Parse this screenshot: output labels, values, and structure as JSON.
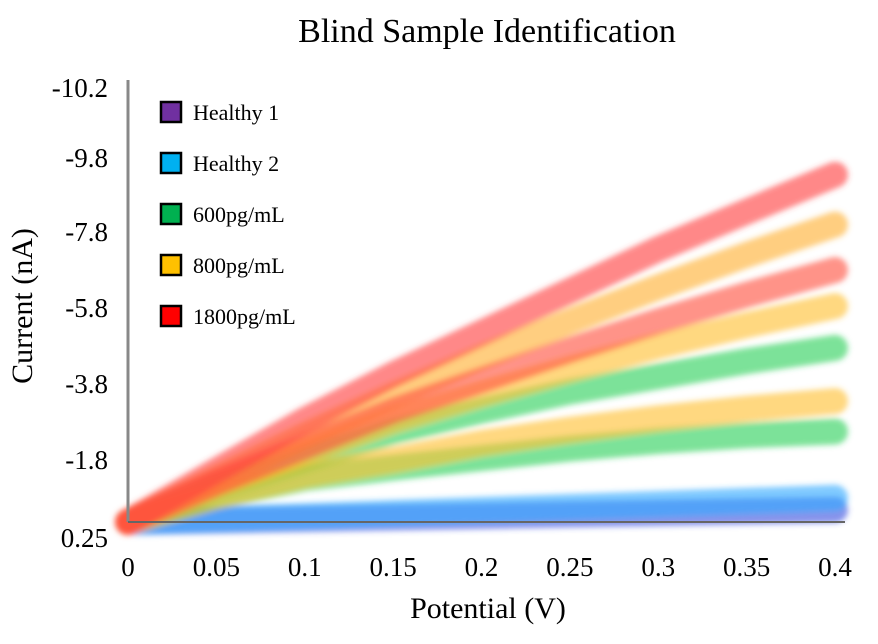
{
  "chart_data": {
    "type": "line",
    "title": "Blind Sample Identification",
    "xlabel": "Potential (V)",
    "ylabel": "Current (nA)",
    "x_ticks": [
      "0",
      "0.05",
      "0.1",
      "0.15",
      "0.2",
      "0.25",
      "0.3",
      "0.35",
      "0.4"
    ],
    "y_ticks": [
      "-10.2",
      "-9.8",
      "-7.8",
      "-5.8",
      "-3.8",
      "-1.8",
      "0.25"
    ],
    "xlim": [
      0,
      0.4
    ],
    "y_axis_inverted": true,
    "grid": false,
    "legend_position": "top-left",
    "legend": [
      {
        "label": "Healthy 1",
        "color": "#7030A0"
      },
      {
        "label": "Healthy 2",
        "color": "#00B0F0"
      },
      {
        "label": "600pg/mL",
        "color": "#00B050"
      },
      {
        "label": "800pg/mL",
        "color": "#FFC000"
      },
      {
        "label": "1800pg/mL",
        "color": "#FF0000"
      }
    ],
    "x": [
      0,
      0.05,
      0.1,
      0.15,
      0.2,
      0.25,
      0.3,
      0.35,
      0.4
    ],
    "series": [
      {
        "group": "Healthy 1",
        "color": "#3b50e0",
        "y": [
          0.25,
          0.2,
          0.15,
          0.1,
          0.05,
          0.0,
          -0.05,
          -0.1,
          -0.15
        ]
      },
      {
        "group": "Healthy 2",
        "color": "#33aaff",
        "y": [
          0.25,
          0.15,
          0.05,
          -0.05,
          -0.15,
          -0.25,
          -0.35,
          -0.45,
          -0.55
        ]
      },
      {
        "group": "600pg/mL",
        "color": "#2fd05a",
        "y": [
          0.25,
          -0.6,
          -1.2,
          -1.55,
          -1.85,
          -2.1,
          -2.3,
          -2.45,
          -2.55
        ]
      },
      {
        "group": "600pg/mL",
        "color": "#2fd05a",
        "y": [
          0.25,
          -0.9,
          -1.8,
          -2.55,
          -3.1,
          -3.6,
          -4.0,
          -4.4,
          -4.75
        ]
      },
      {
        "group": "800pg/mL",
        "color": "#ffc030",
        "y": [
          0.25,
          -0.6,
          -1.3,
          -1.8,
          -2.25,
          -2.6,
          -2.9,
          -3.15,
          -3.35
        ]
      },
      {
        "group": "800pg/mL",
        "color": "#ffc030",
        "y": [
          0.25,
          -1.0,
          -2.0,
          -2.85,
          -3.55,
          -4.2,
          -4.8,
          -5.35,
          -5.85
        ]
      },
      {
        "group": "800pg/mL",
        "color": "#ffb030",
        "y": [
          0.25,
          -1.2,
          -2.45,
          -3.5,
          -4.5,
          -5.45,
          -6.35,
          -7.2,
          -8.0
        ]
      },
      {
        "group": "1800pg/mL",
        "color": "#ff5040",
        "y": [
          0.25,
          -1.05,
          -2.15,
          -3.1,
          -3.9,
          -4.7,
          -5.45,
          -6.15,
          -6.8
        ]
      },
      {
        "group": "1800pg/mL",
        "color": "#ff4040",
        "y": [
          0.25,
          -1.45,
          -2.85,
          -4.05,
          -5.15,
          -6.25,
          -7.35,
          -8.35,
          -9.35
        ]
      }
    ]
  }
}
